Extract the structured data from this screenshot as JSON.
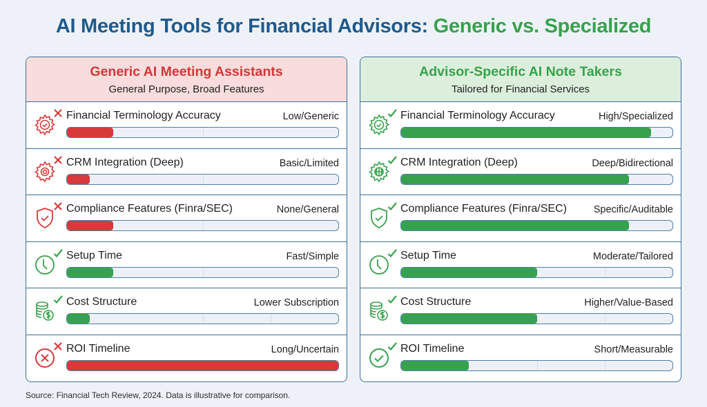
{
  "title": {
    "part1": "AI Meeting Tools for Financial Advisors:",
    "part2": "Generic vs. Specialized"
  },
  "colors": {
    "title_blue": "#1f5a8c",
    "green": "#37a24d",
    "red": "#d63a3a",
    "left_header_bg": "#f9dcdc",
    "right_header_bg": "#dcefdc",
    "border": "#3c6d9c",
    "background": "#eef2f8"
  },
  "left": {
    "heading": "Generic AI Meeting Assistants",
    "subheading": "General Purpose, Broad Features",
    "rows": [
      {
        "label": "Financial Terminology Accuracy",
        "value": "Low/Generic",
        "fill": 17,
        "color": "red",
        "mark": "x",
        "icon": "gear-check-icon"
      },
      {
        "label": "CRM Integration (Deep)",
        "value": "Basic/Limited",
        "fill": 8.5,
        "color": "red",
        "mark": "x",
        "icon": "gear-icon"
      },
      {
        "label": "Compliance Features (Finra/SEC)",
        "value": "None/General",
        "fill": 17,
        "color": "red",
        "mark": "x",
        "icon": "shield-check-icon"
      },
      {
        "label": "Setup Time",
        "value": "Fast/Simple",
        "fill": 17,
        "color": "green",
        "mark": "check",
        "icon": "clock-icon"
      },
      {
        "label": "Cost Structure",
        "value": "Lower Subscription",
        "fill": 8.5,
        "color": "green",
        "mark": "check",
        "icon": "coins-dollar-icon"
      },
      {
        "label": "ROI Timeline",
        "value": "Long/Uncertain",
        "fill": 100,
        "color": "red",
        "mark": "x",
        "icon": "circle-x-icon"
      }
    ]
  },
  "right": {
    "heading": "Advisor-Specific AI Note Takers",
    "subheading": "Tailored for Financial Services",
    "rows": [
      {
        "label": "Financial Terminology Accuracy",
        "value": "High/Specialized",
        "fill": 92,
        "color": "green",
        "mark": "check",
        "icon": "gear-check-icon"
      },
      {
        "label": "CRM Integration (Deep)",
        "value": "Deep/Bidirectional",
        "fill": 84,
        "color": "green",
        "mark": "check",
        "icon": "gear-globe-icon"
      },
      {
        "label": "Compliance Features (Finra/SEC)",
        "value": "Specific/Auditable",
        "fill": 84,
        "color": "green",
        "mark": "check",
        "icon": "shield-check-icon"
      },
      {
        "label": "Setup Time",
        "value": "Moderate/Tailored",
        "fill": 50,
        "color": "green",
        "mark": "check",
        "icon": "clock-icon"
      },
      {
        "label": "Cost Structure",
        "value": "Higher/Value-Based",
        "fill": 50,
        "color": "green",
        "mark": "check",
        "icon": "coins-dollar-icon"
      },
      {
        "label": "ROI Timeline",
        "value": "Short/Measurable",
        "fill": 25,
        "color": "green",
        "mark": "check",
        "icon": "circle-check-icon"
      }
    ]
  },
  "source": "Source: Financial Tech Review, 2024. Data is illustrative for comparison.",
  "chart_data": {
    "type": "bar",
    "title": "AI Meeting Tools for Financial Advisors: Generic vs. Specialized",
    "categories": [
      "Financial Terminology Accuracy",
      "CRM Integration (Deep)",
      "Compliance Features (Finra/SEC)",
      "Setup Time",
      "Cost Structure",
      "ROI Timeline"
    ],
    "series": [
      {
        "name": "Generic AI Meeting Assistants",
        "values": [
          17,
          8.5,
          17,
          17,
          8.5,
          100
        ],
        "labels": [
          "Low/Generic",
          "Basic/Limited",
          "None/General",
          "Fast/Simple",
          "Lower Subscription",
          "Long/Uncertain"
        ]
      },
      {
        "name": "Advisor-Specific AI Note Takers",
        "values": [
          92,
          84,
          84,
          50,
          50,
          25
        ],
        "labels": [
          "High/Specialized",
          "Deep/Bidirectional",
          "Specific/Auditable",
          "Moderate/Tailored",
          "Higher/Value-Based",
          "Short/Measurable"
        ]
      }
    ],
    "xlabel": "",
    "ylabel": "",
    "ylim": [
      0,
      100
    ],
    "orientation": "horizontal",
    "grid": false,
    "legend_position": "panel headers"
  }
}
